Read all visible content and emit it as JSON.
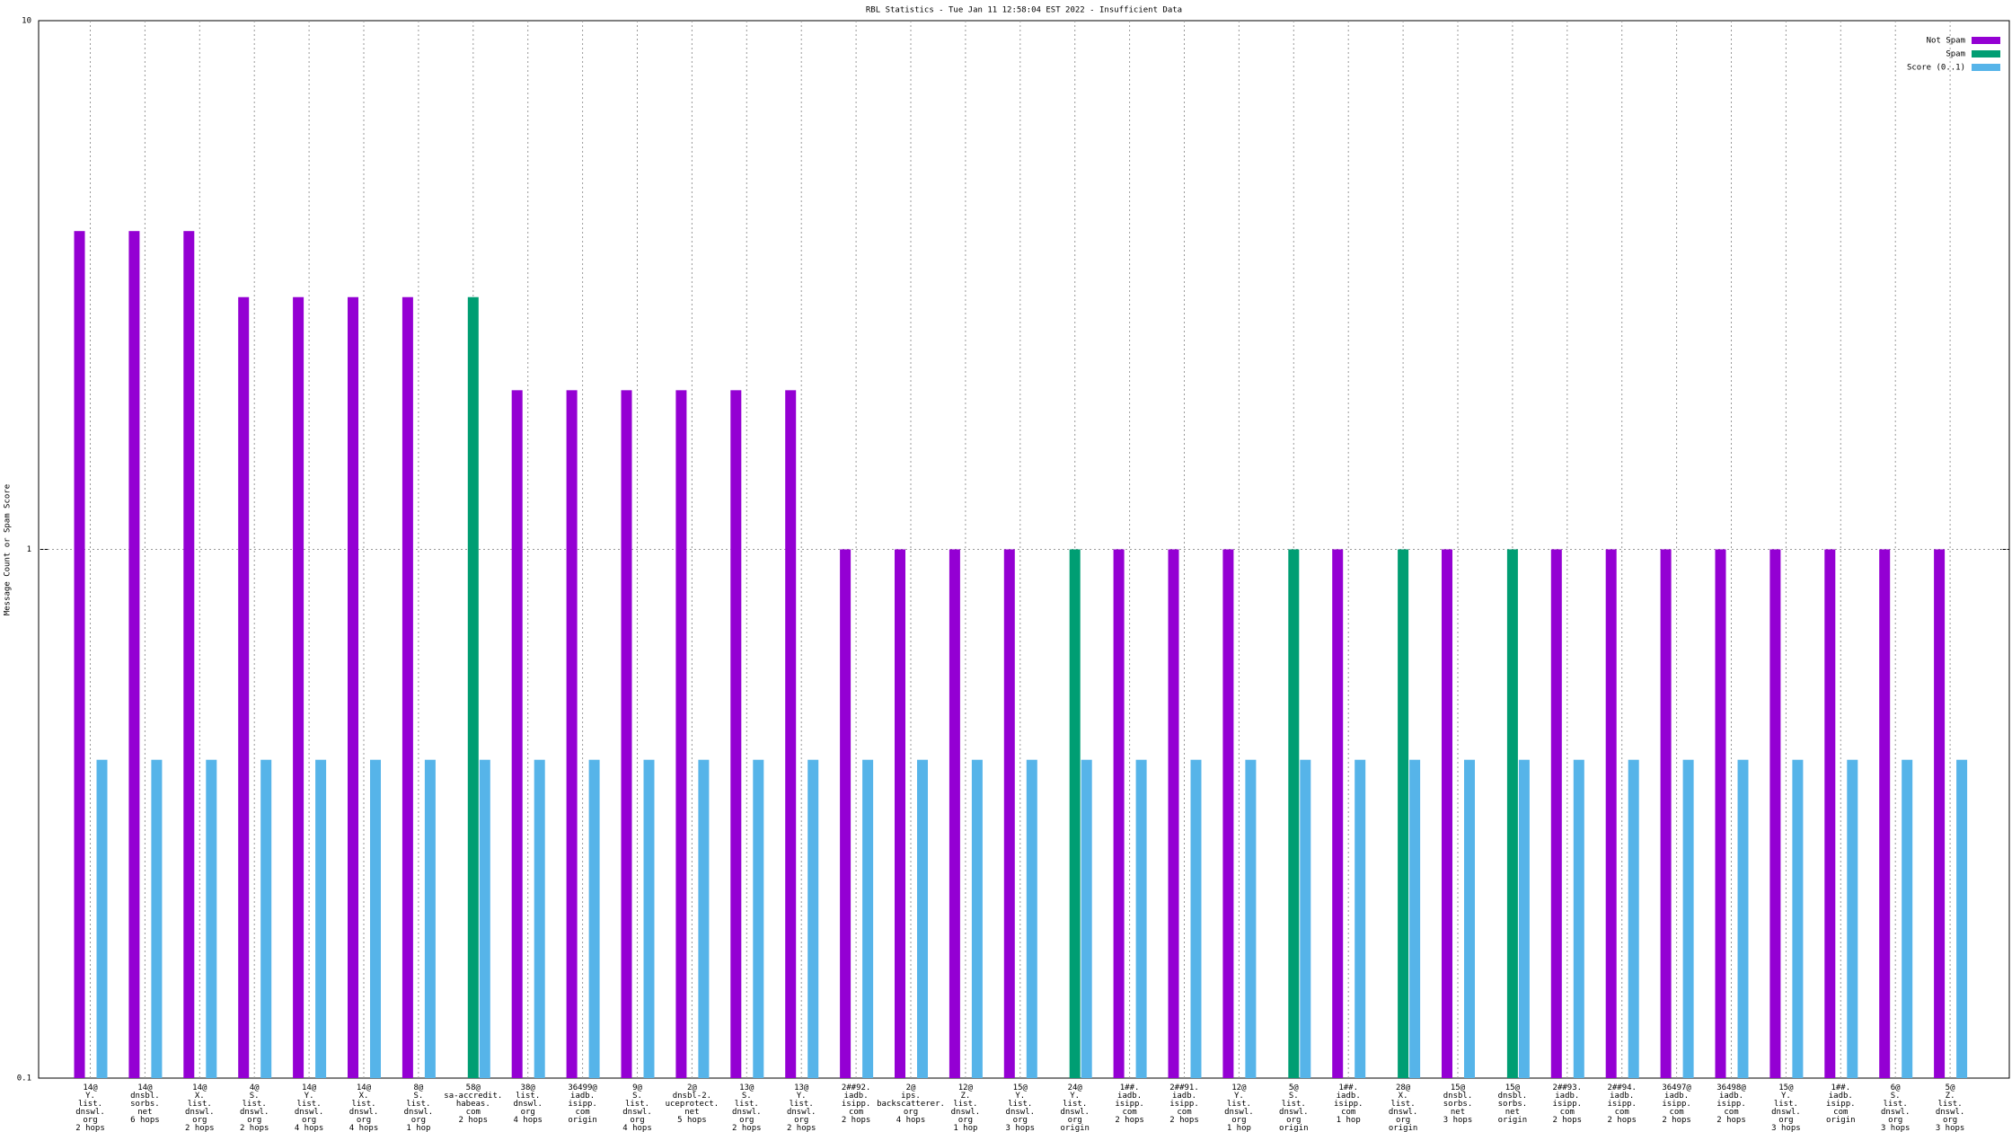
{
  "chart_data": {
    "type": "bar",
    "title": "RBL Statistics - Tue Jan 11 12:58:04 EST 2022 - Insufficient Data",
    "y_label": "Message Count or Spam Score",
    "log_scale": true,
    "grid": true,
    "legend_position": "top-right",
    "ylim": [
      0.1,
      10
    ],
    "yticks": [
      0.1,
      1,
      10
    ],
    "categories": [
      "14@\nY.\nlist.\ndnswl.\norg\n2 hops",
      "14@\ndnsbl.\nsorbs.\nnet\n6 hops",
      "14@\nX.\nlist.\ndnswl.\norg\n2 hops",
      "4@\nS.\nlist.\ndnswl.\norg\n2 hops",
      "14@\nY.\nlist.\ndnswl.\norg\n4 hops",
      "14@\nX.\nlist.\ndnswl.\norg\n4 hops",
      "8@\nS.\nlist.\ndnswl.\norg\n1 hop",
      "58@\nsa-accredit.\nhabeas.\ncom\n2 hops",
      "38@\nlist.\ndnswl.\norg\n4 hops",
      "36499@\niadb.\nisipp.\ncom\norigin",
      "9@\nS.\nlist.\ndnswl.\norg\n4 hops",
      "2@\ndnsbl-2.\nuceprotect.\nnet\n5 hops",
      "13@\nS.\nlist.\ndnswl.\norg\n2 hops",
      "13@\nY.\nlist.\ndnswl.\norg\n2 hops",
      "2##92.\niadb.\nisipp.\ncom\n2 hops",
      "2@\nips.\nbackscatterer.\norg\n4 hops",
      "12@\nZ.\nlist.\ndnswl.\norg\n1 hop",
      "15@\nY.\nlist.\ndnswl.\norg\n3 hops",
      "24@\nY.\nlist.\ndnswl.\norg\norigin",
      "1##.\niadb.\nisipp.\ncom\n2 hops",
      "2##91.\niadb.\nisipp.\ncom\n2 hops",
      "12@\nY.\nlist.\ndnswl.\norg\n1 hop",
      "5@\nS.\nlist.\ndnswl.\norg\norigin",
      "1##.\niadb.\nisipp.\ncom\n1 hop",
      "28@\nX.\nlist.\ndnswl.\norg\norigin",
      "15@\ndnsbl.\nsorbs.\nnet\n3 hops",
      "15@\ndnsbl.\nsorbs.\nnet\norigin",
      "2##93.\niadb.\nisipp.\ncom\n2 hops",
      "2##94.\niadb.\nisipp.\ncom\n2 hops",
      "36497@\niadb.\nisipp.\ncom\n2 hops",
      "36498@\niadb.\nisipp.\ncom\n2 hops",
      "15@\nY.\nlist.\ndnswl.\norg\n3 hops",
      "1##.\niadb.\nisipp.\ncom\norigin",
      "6@\nS.\nlist.\ndnswl.\norg\n3 hops",
      "5@\nZ.\nlist.\ndnswl.\norg\n3 hops"
    ],
    "series": [
      {
        "name": "Not Spam",
        "color": "#9400d3",
        "values": [
          4,
          4,
          4,
          3,
          3,
          3,
          3,
          null,
          2,
          2,
          2,
          2,
          2,
          2,
          1,
          1,
          1,
          1,
          null,
          1,
          1,
          1,
          null,
          1,
          null,
          1,
          null,
          1,
          1,
          1,
          1,
          1,
          1,
          1,
          1
        ]
      },
      {
        "name": "Spam",
        "color": "#009e73",
        "values": [
          null,
          null,
          null,
          null,
          null,
          null,
          null,
          3,
          null,
          null,
          null,
          null,
          null,
          null,
          null,
          null,
          null,
          null,
          1,
          null,
          null,
          null,
          1,
          null,
          1,
          null,
          1,
          null,
          null,
          null,
          null,
          null,
          null,
          null,
          null
        ]
      },
      {
        "name": "Score (0..1)",
        "color": "#56b4e9",
        "values": [
          0.4,
          0.4,
          0.4,
          0.4,
          0.4,
          0.4,
          0.4,
          0.4,
          0.4,
          0.4,
          0.4,
          0.4,
          0.4,
          0.4,
          0.4,
          0.4,
          0.4,
          0.4,
          0.4,
          0.4,
          0.4,
          0.4,
          0.4,
          0.4,
          0.4,
          0.4,
          0.4,
          0.4,
          0.4,
          0.4,
          0.4,
          0.4,
          0.4,
          0.4,
          0.4
        ]
      }
    ]
  }
}
